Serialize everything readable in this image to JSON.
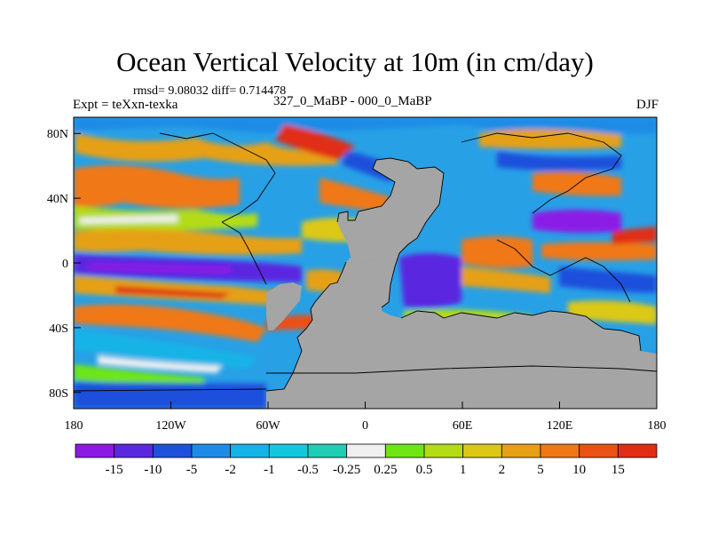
{
  "title": "Ocean Vertical Velocity at 10m (in cm/day)",
  "stats_label": "rmsd= 9.08032 diff= 0.714478",
  "experiment_label": "Expt = teXxn-texka",
  "comparison_label": "327_0_MaBP - 000_0_MaBP",
  "season_label": "DJF",
  "map": {
    "projection": "cylindrical-equidistant",
    "lon_range": [
      -180,
      180
    ],
    "lat_range": [
      -90,
      90
    ],
    "x_ticks": [
      {
        "value": -180,
        "label": "180"
      },
      {
        "value": -120,
        "label": "120W"
      },
      {
        "value": -60,
        "label": "60W"
      },
      {
        "value": 0,
        "label": "0"
      },
      {
        "value": 60,
        "label": "60E"
      },
      {
        "value": 120,
        "label": "120E"
      },
      {
        "value": 180,
        "label": "180"
      }
    ],
    "y_ticks": [
      {
        "value": 80,
        "label": "80N"
      },
      {
        "value": 40,
        "label": "40N"
      },
      {
        "value": 0,
        "label": "0"
      },
      {
        "value": -40,
        "label": "40S"
      },
      {
        "value": -80,
        "label": "80S"
      }
    ],
    "land_color": "#a5a5a5"
  },
  "colorbar": {
    "colors": [
      "#8b1ae6",
      "#5a28e0",
      "#1e50dc",
      "#1e8ce6",
      "#14b4e6",
      "#14c8dc",
      "#1ecdb4",
      "#f0f0f0",
      "#6ee614",
      "#b4dc14",
      "#dcc814",
      "#e6a014",
      "#f07814",
      "#eb5014",
      "#e12d14"
    ],
    "tick_labels": [
      "-15",
      "-10",
      "-5",
      "-2",
      "-1",
      "-0.5",
      "-0.25",
      "0.25",
      "0.5",
      "1",
      "2",
      "5",
      "10",
      "15"
    ]
  }
}
